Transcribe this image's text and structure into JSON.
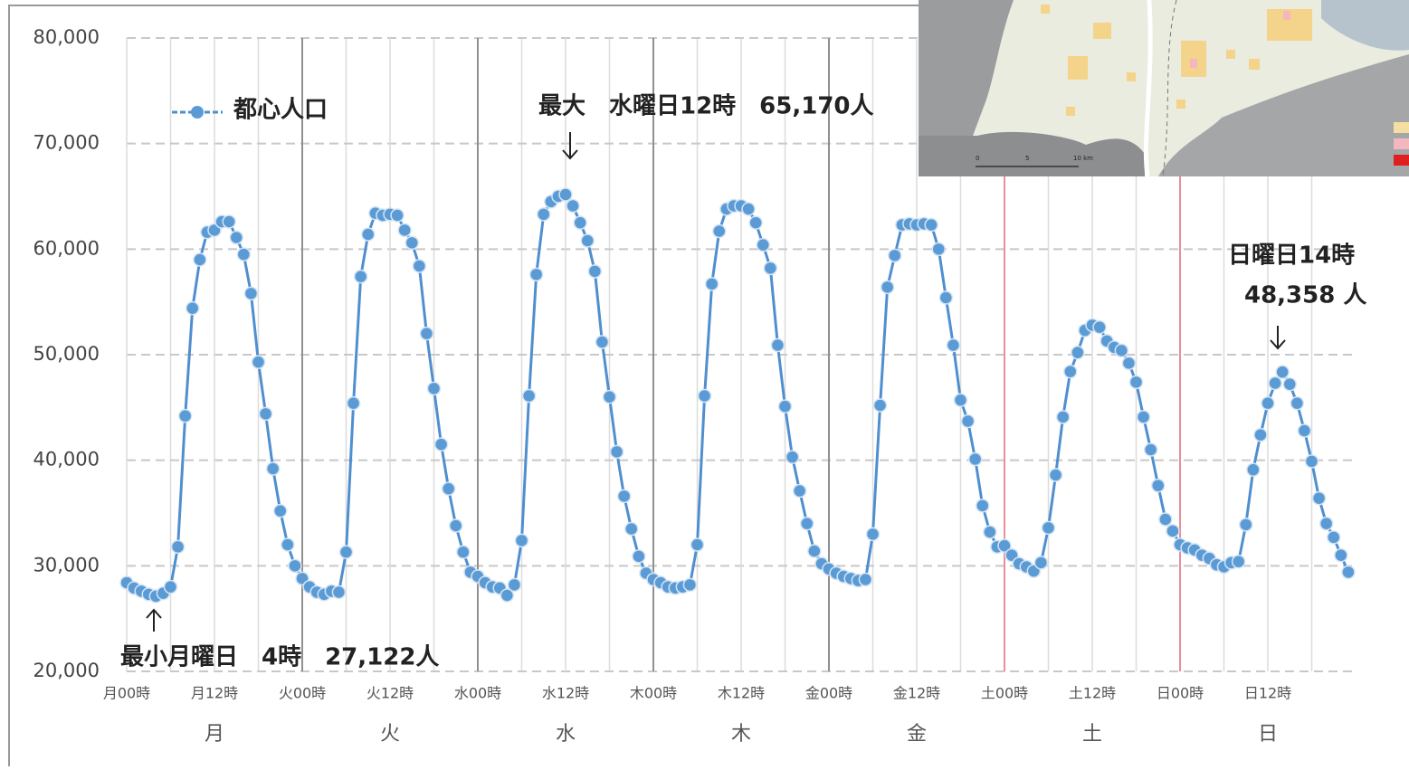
{
  "chart_data": {
    "type": "line",
    "x": [
      0,
      1,
      2,
      3,
      4,
      5,
      6,
      7,
      8,
      9,
      10,
      11,
      12,
      13,
      14,
      15,
      16,
      17,
      18,
      19,
      20,
      21,
      22,
      23,
      24,
      25,
      26,
      27,
      28,
      29,
      30,
      31,
      32,
      33,
      34,
      35,
      36,
      37,
      38,
      39,
      40,
      41,
      42,
      43,
      44,
      45,
      46,
      47,
      48,
      49,
      50,
      51,
      52,
      53,
      54,
      55,
      56,
      57,
      58,
      59,
      60,
      61,
      62,
      63,
      64,
      65,
      66,
      67,
      68,
      69,
      70,
      71,
      72,
      73,
      74,
      75,
      76,
      77,
      78,
      79,
      80,
      81,
      82,
      83,
      84,
      85,
      86,
      87,
      88,
      89,
      90,
      91,
      92,
      93,
      94,
      95,
      96,
      97,
      98,
      99,
      100,
      101,
      102,
      103,
      104,
      105,
      106,
      107,
      108,
      109,
      110,
      111,
      112,
      113,
      114,
      115,
      116,
      117,
      118,
      119,
      120,
      121,
      122,
      123,
      124,
      125,
      126,
      127,
      128,
      129,
      130,
      131,
      132,
      133,
      134,
      135,
      136,
      137,
      138,
      139,
      140,
      141,
      142,
      143,
      144,
      145,
      146,
      147,
      148,
      149,
      150,
      151,
      152,
      153,
      154,
      155,
      156,
      157,
      158,
      159,
      160,
      161,
      162,
      163,
      164,
      165,
      166,
      167
    ],
    "series": [
      {
        "name": "都心人口",
        "color": "#4f8fd0",
        "marker_color": "#5b9bd5",
        "values": [
          28400,
          27900,
          27600,
          27300,
          27122,
          27400,
          28000,
          31800,
          44200,
          54400,
          59000,
          61600,
          61800,
          62600,
          62600,
          61100,
          59500,
          55800,
          49300,
          44400,
          39200,
          35200,
          32000,
          30000,
          28800,
          28000,
          27500,
          27300,
          27600,
          27500,
          31300,
          45400,
          57400,
          61400,
          63400,
          63200,
          63300,
          63200,
          61800,
          60600,
          58400,
          52000,
          46800,
          41500,
          37300,
          33800,
          31300,
          29400,
          29000,
          28400,
          28000,
          27900,
          27200,
          28200,
          32400,
          46100,
          57600,
          63300,
          64500,
          65000,
          65170,
          64100,
          62500,
          60800,
          57900,
          51200,
          46000,
          40800,
          36600,
          33500,
          30900,
          29300,
          28700,
          28400,
          28000,
          27900,
          28000,
          28200,
          32000,
          46100,
          56700,
          61700,
          63800,
          64100,
          64100,
          63800,
          62500,
          60400,
          58200,
          50900,
          45100,
          40300,
          37100,
          34000,
          31400,
          30200,
          29700,
          29300,
          29000,
          28800,
          28600,
          28700,
          33000,
          45200,
          56400,
          59400,
          62300,
          62400,
          62300,
          62400,
          62300,
          60000,
          55400,
          50900,
          45700,
          43700,
          40100,
          35700,
          33200,
          31800,
          31900,
          31000,
          30200,
          29900,
          29500,
          30300,
          33600,
          38600,
          44100,
          48400,
          50200,
          52300,
          52800,
          52600,
          51300,
          50700,
          50400,
          49200,
          47400,
          44100,
          41000,
          37600,
          34400,
          33300,
          32000,
          31700,
          31500,
          31000,
          30700,
          30100,
          29900,
          30300,
          30400,
          33900,
          39100,
          42400,
          45400,
          47300,
          48358,
          47200,
          45400,
          42800,
          39900,
          36400,
          34000,
          32700,
          31000,
          29400
        ]
      }
    ],
    "xlim": [
      0,
      168
    ],
    "xticks": [
      {
        "value": 0,
        "label": "月00時"
      },
      {
        "value": 12,
        "label": "月12時"
      },
      {
        "value": 24,
        "label": "火00時"
      },
      {
        "value": 36,
        "label": "火12時"
      },
      {
        "value": 48,
        "label": "水00時"
      },
      {
        "value": 60,
        "label": "水12時"
      },
      {
        "value": 72,
        "label": "木00時"
      },
      {
        "value": 84,
        "label": "木12時"
      },
      {
        "value": 96,
        "label": "金00時"
      },
      {
        "value": 108,
        "label": "金12時"
      },
      {
        "value": 120,
        "label": "土00時"
      },
      {
        "value": 132,
        "label": "土12時"
      },
      {
        "value": 144,
        "label": "日00時"
      },
      {
        "value": 156,
        "label": "日12時"
      }
    ],
    "day_labels": [
      "月",
      "火",
      "水",
      "木",
      "金",
      "土",
      "日"
    ],
    "separator_colors": [
      "#909090",
      "#909090",
      "#909090",
      "#909090",
      "#e89098",
      "#e89098"
    ],
    "ylim": [
      20000,
      80000
    ],
    "yticks": [
      {
        "value": 20000,
        "label": "20,000"
      },
      {
        "value": 30000,
        "label": "30,000"
      },
      {
        "value": 40000,
        "label": "40,000"
      },
      {
        "value": 50000,
        "label": "50,000"
      },
      {
        "value": 60000,
        "label": "60,000"
      },
      {
        "value": 70000,
        "label": "70,000"
      },
      {
        "value": 80000,
        "label": "80,000"
      }
    ],
    "grid": true,
    "annotations": [
      "最大　水曜日12時　65,170人",
      "最小月曜日　4時　27,122人",
      "日曜日14時",
      "48,358 人"
    ]
  },
  "map": {
    "scale_labels": [
      "0",
      "5",
      "10 km"
    ]
  }
}
